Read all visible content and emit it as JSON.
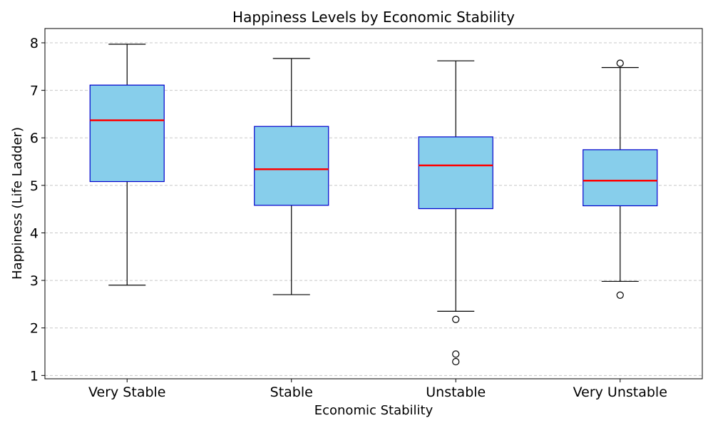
{
  "chart_data": {
    "type": "box",
    "title": "Happiness Levels by Economic Stability",
    "xlabel": "Economic Stability",
    "ylabel": "Happiness (Life Ladder)",
    "ylim": [
      0.93,
      8.3
    ],
    "yticks": [
      1,
      2,
      3,
      4,
      5,
      6,
      7,
      8
    ],
    "grid": "y-dashed",
    "categories": [
      "Very Stable",
      "Stable",
      "Unstable",
      "Very Unstable"
    ],
    "boxes": [
      {
        "category": "Very Stable",
        "whisker_low": 2.9,
        "q1": 5.08,
        "median": 6.37,
        "q3": 7.11,
        "whisker_high": 7.97,
        "outliers": []
      },
      {
        "category": "Stable",
        "whisker_low": 2.7,
        "q1": 4.58,
        "median": 5.34,
        "q3": 6.24,
        "whisker_high": 7.67,
        "outliers": []
      },
      {
        "category": "Unstable",
        "whisker_low": 2.35,
        "q1": 4.51,
        "median": 5.42,
        "q3": 6.02,
        "whisker_high": 7.62,
        "outliers": [
          2.18,
          1.45,
          1.29
        ]
      },
      {
        "category": "Very Unstable",
        "whisker_low": 2.98,
        "q1": 4.57,
        "median": 5.1,
        "q3": 5.75,
        "whisker_high": 7.48,
        "outliers": [
          7.57,
          2.69
        ]
      }
    ],
    "colors": {
      "box_fill": "#87ceeb",
      "box_edge": "#0000cd",
      "median": "#ff0000",
      "whisker": "#000000",
      "grid": "#c8c8c8"
    }
  }
}
